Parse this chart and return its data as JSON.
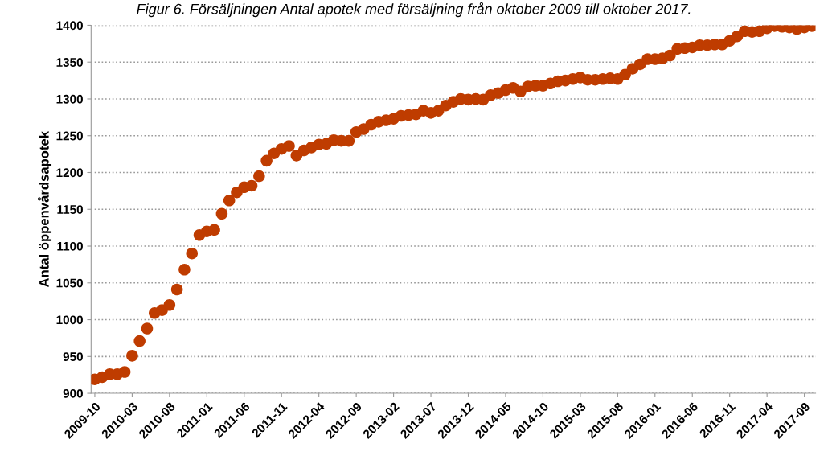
{
  "chart_data": {
    "type": "scatter",
    "title": "Figur 6. Försäljningen Antal apotek med försäljning från oktober 2009 till oktober 2017.",
    "ylabel": "Antal öppenvårdsapotek",
    "categories": [
      "2009-10",
      null,
      null,
      null,
      null,
      "2010-03",
      null,
      null,
      null,
      null,
      "2010-08",
      null,
      null,
      null,
      null,
      "2011-01",
      null,
      null,
      null,
      null,
      "2011-06",
      null,
      null,
      null,
      null,
      "2011-11",
      null,
      null,
      null,
      null,
      "2012-04",
      null,
      null,
      null,
      null,
      "2012-09",
      null,
      null,
      null,
      null,
      "2013-02",
      null,
      null,
      null,
      null,
      "2013-07",
      null,
      null,
      null,
      null,
      "2013-12",
      null,
      null,
      null,
      null,
      "2014-05",
      null,
      null,
      null,
      null,
      "2014-10",
      null,
      null,
      null,
      null,
      "2015-03",
      null,
      null,
      null,
      null,
      "2015-08",
      null,
      null,
      null,
      null,
      "2016-01",
      null,
      null,
      null,
      null,
      "2016-06",
      null,
      null,
      null,
      null,
      "2016-11",
      null,
      null,
      null,
      null,
      "2017-04",
      null,
      null,
      null,
      null,
      "2017-09",
      null
    ],
    "series": [
      {
        "color": "#bf3c00",
        "values": [
          919,
          922,
          926,
          926,
          929,
          951,
          971,
          988,
          1009,
          1013,
          1020,
          1041,
          1068,
          1090,
          1115,
          1120,
          1122,
          1144,
          1162,
          1173,
          1180,
          1182,
          1195,
          1216,
          1226,
          1232,
          1236,
          1223,
          1230,
          1234,
          1238,
          1239,
          1244,
          1243,
          1243,
          1255,
          1259,
          1265,
          1269,
          1271,
          1273,
          1277,
          1278,
          1279,
          1284,
          1281,
          1284,
          1291,
          1296,
          1300,
          1299,
          1300,
          1299,
          1305,
          1308,
          1312,
          1315,
          1310,
          1317,
          1318,
          1318,
          1321,
          1324,
          1325,
          1327,
          1329,
          1326,
          1326,
          1327,
          1328,
          1327,
          1333,
          1341,
          1347,
          1354,
          1354,
          1355,
          1359,
          1368,
          1369,
          1370,
          1373,
          1373,
          1374,
          1374,
          1379,
          1385,
          1392,
          1391,
          1392,
          1396,
          1399,
          1398,
          1397,
          1395,
          1397,
          1399
        ]
      }
    ],
    "ylim": [
      900,
      1400
    ],
    "yticks": [
      900,
      950,
      1000,
      1050,
      1100,
      1150,
      1200,
      1250,
      1300,
      1350,
      1400
    ],
    "grid": "y",
    "marker": "circle"
  }
}
